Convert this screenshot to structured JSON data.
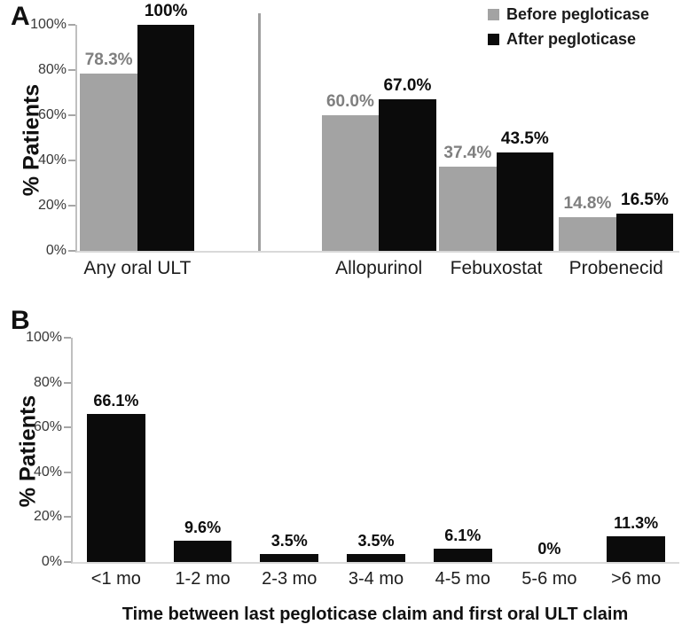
{
  "colors": {
    "before_bar": "#a3a3a3",
    "after_bar": "#0b0b0b",
    "before_label": "#7f7f7f",
    "after_label": "#0d0d0d",
    "axis_line": "#bfbfbf",
    "baseline": "#d9d9d9",
    "tick": "#a6a6a6",
    "divider": "#9e9e9e"
  },
  "legend": {
    "position": "top-right",
    "items": [
      {
        "label": "Before pegloticase",
        "color": "#a3a3a3"
      },
      {
        "label": "After pegloticase",
        "color": "#0b0b0b"
      }
    ]
  },
  "chart_data": [
    {
      "type": "bar",
      "panel": "A",
      "categories": [
        "Any oral ULT",
        "Allopurinol",
        "Febuxostat",
        "Probenecid"
      ],
      "series": [
        {
          "name": "Before pegloticase",
          "color": "#a3a3a3",
          "values": [
            78.3,
            60.0,
            37.4,
            14.8
          ],
          "labels": [
            "78.3%",
            "60.0%",
            "37.4%",
            "14.8%"
          ],
          "label_color": "#7f7f7f"
        },
        {
          "name": "After pegloticase",
          "color": "#0b0b0b",
          "values": [
            100,
            67.0,
            43.5,
            16.5
          ],
          "labels": [
            "100%",
            "67.0%",
            "43.5%",
            "16.5%"
          ],
          "label_color": "#0d0d0d"
        }
      ],
      "xlabel": "",
      "ylabel": "% Patients",
      "ylim": [
        0,
        100
      ],
      "yticks": [
        0,
        20,
        40,
        60,
        80,
        100
      ],
      "ytick_labels": [
        "0%",
        "20%",
        "40%",
        "60%",
        "80%",
        "100%"
      ],
      "grid": false,
      "legend_position": "top-right",
      "layout": {
        "centers_pct": [
          10.0,
          50.1,
          69.6,
          89.5
        ],
        "bar_width_pct": 9.5,
        "divider_x_pct": 30.0
      }
    },
    {
      "type": "bar",
      "panel": "B",
      "categories": [
        "<1 mo",
        "1-2 mo",
        "2-3 mo",
        "3-4 mo",
        "4-5 mo",
        "5-6 mo",
        ">6 mo"
      ],
      "values": [
        66.1,
        9.6,
        3.5,
        3.5,
        6.1,
        0,
        11.3
      ],
      "value_labels": [
        "66.1%",
        "9.6%",
        "3.5%",
        "3.5%",
        "6.1%",
        "0%",
        "11.3%"
      ],
      "bar_color": "#0b0b0b",
      "value_label_color": "#0d0d0d",
      "xlabel": "Time between last pegloticase claim and first oral ULT claim",
      "ylabel": "% Patients",
      "ylim": [
        0,
        100
      ],
      "yticks": [
        0,
        20,
        40,
        60,
        80,
        100
      ],
      "ytick_labels": [
        "0%",
        "20%",
        "40%",
        "60%",
        "80%",
        "100%"
      ],
      "grid": false,
      "legend_position": "none",
      "layout": {
        "bar_width_pct": 9.6
      }
    }
  ]
}
